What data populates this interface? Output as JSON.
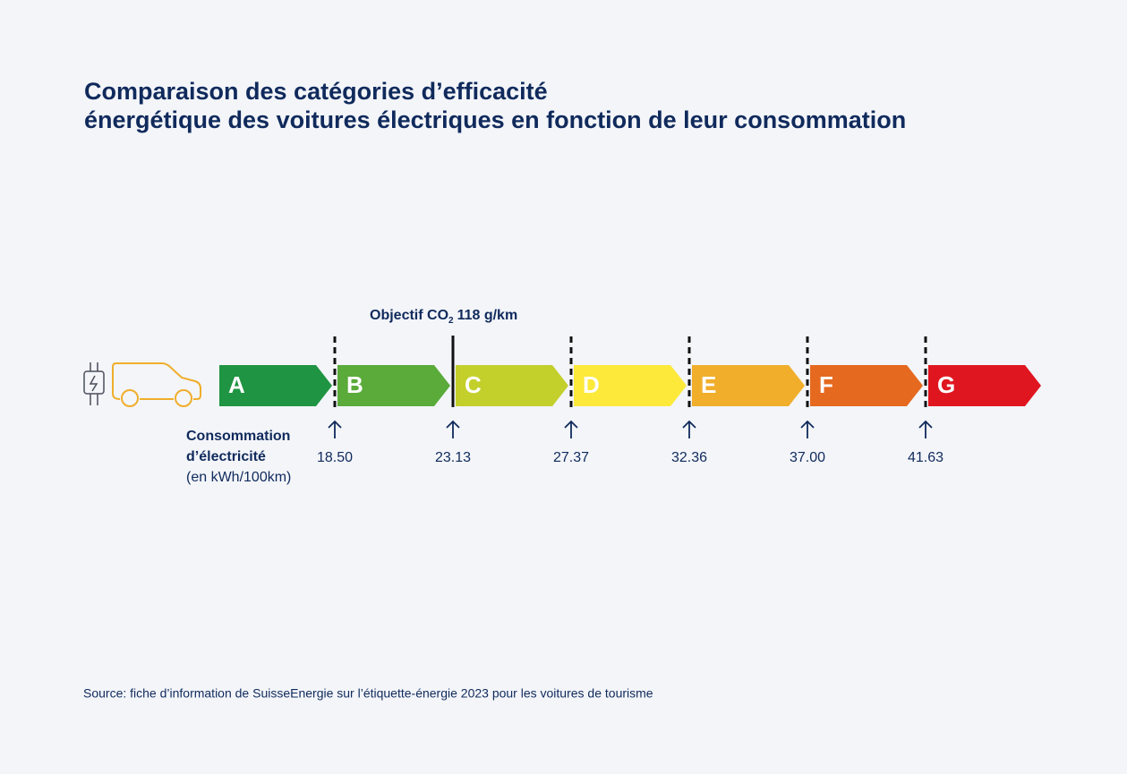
{
  "title": [
    "Comparaison des catégories d’efficacité",
    "énergétique des voitures électriques en fonction de leur consommation"
  ],
  "objective": {
    "prefix": "Objectif CO",
    "subscript": "2",
    "suffix": "118 g/km"
  },
  "classes": [
    {
      "label": "A",
      "color": "#1f9442"
    },
    {
      "label": "B",
      "color": "#5aab3a"
    },
    {
      "label": "C",
      "color": "#c3cf2b"
    },
    {
      "label": "D",
      "color": "#fce93a"
    },
    {
      "label": "E",
      "color": "#f0ae2b"
    },
    {
      "label": "F",
      "color": "#e5691f"
    },
    {
      "label": "G",
      "color": "#df1620"
    }
  ],
  "thresholds": [
    "18.50",
    "23.13",
    "27.37",
    "32.36",
    "37.00",
    "41.63"
  ],
  "axis_label": [
    "Consommation",
    "d’électricité",
    "(en kWh/100km)"
  ],
  "source": "Source: fiche d’information de SuisseEnergie sur l’étiquette-énergie 2023 pour les voitures de tourisme"
}
